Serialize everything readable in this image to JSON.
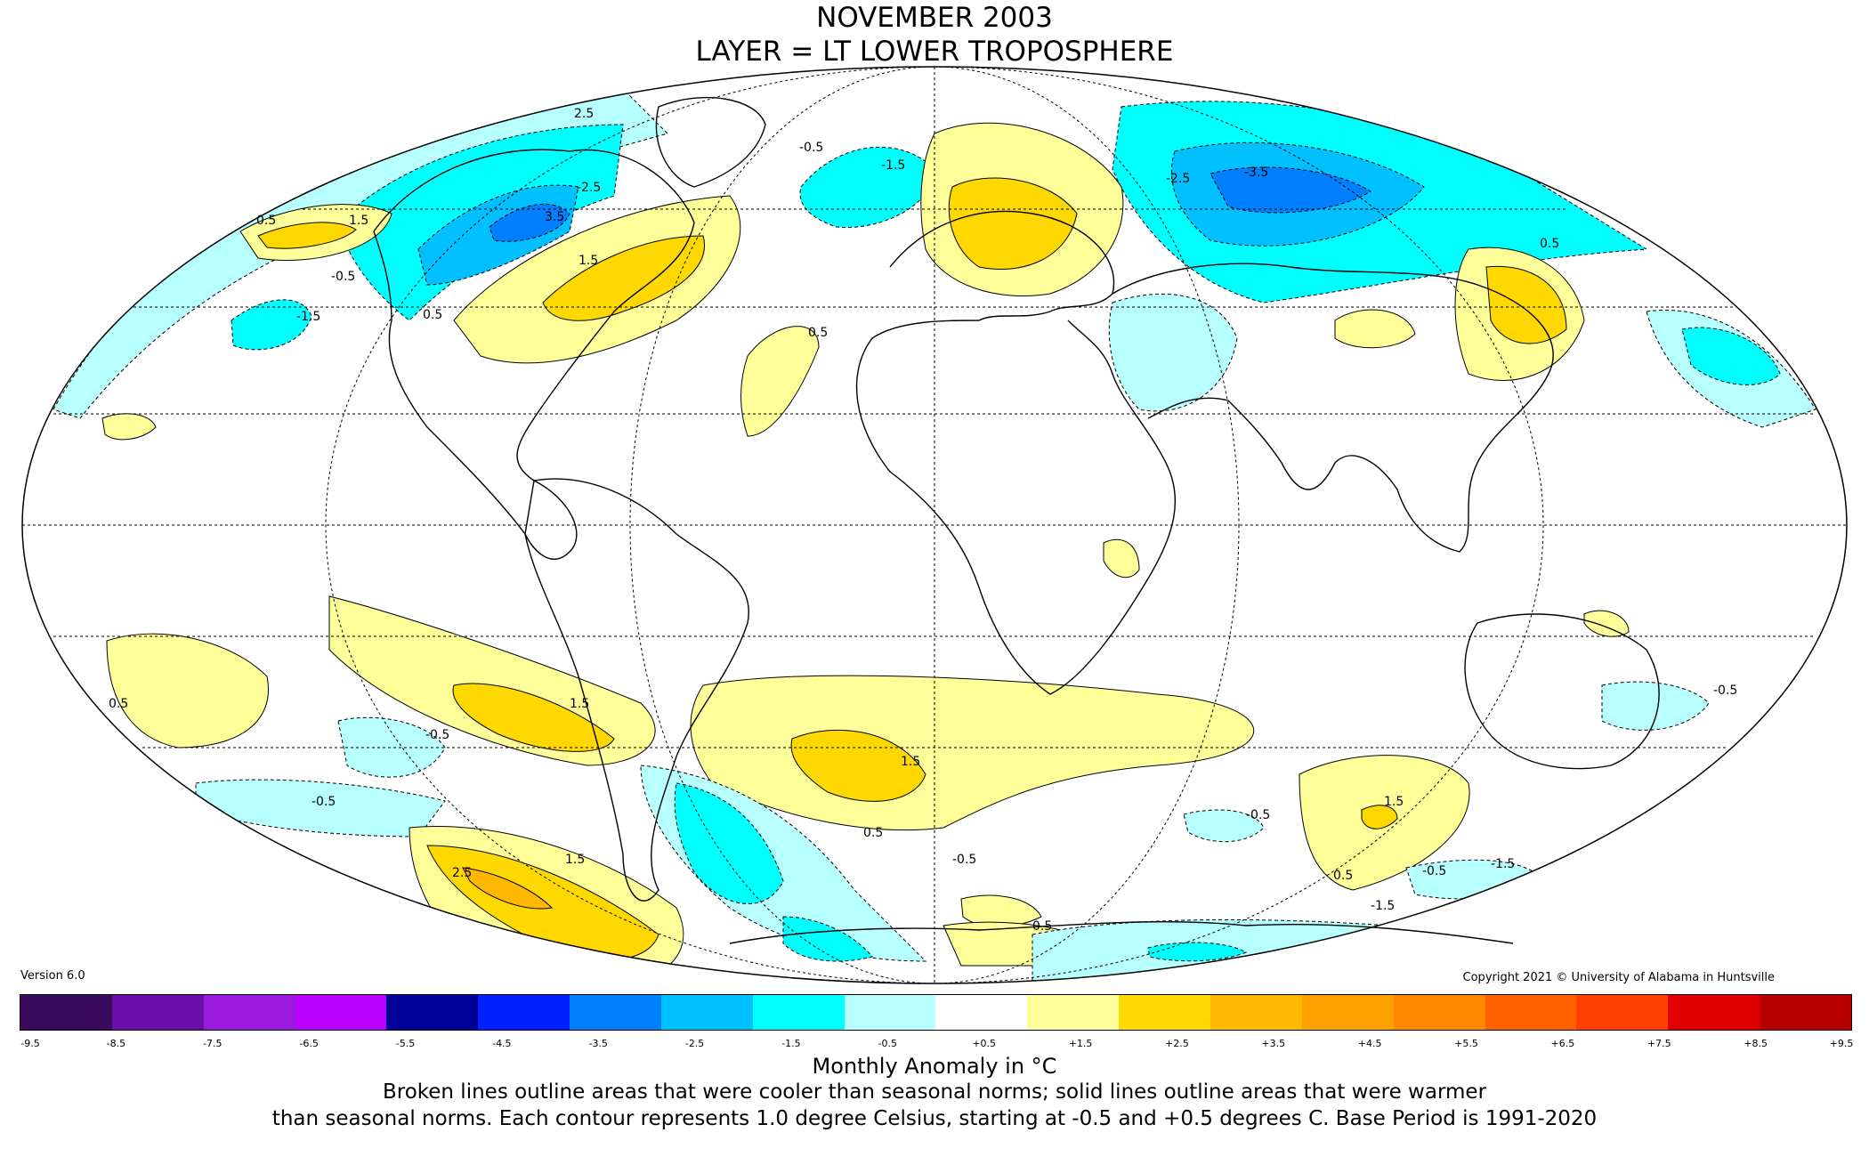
{
  "title_line1": "NOVEMBER 2003",
  "title_line2": "LAYER = LT LOWER TROPOSPHERE",
  "version": "Version 6.0",
  "copyright": "Copyright 2021 © University of Alabama in Huntsville",
  "legend": {
    "units_label": "Monthly Anomaly in °C",
    "ticks": [
      "-9.5",
      "-8.5",
      "-7.5",
      "-6.5",
      "-5.5",
      "-4.5",
      "-3.5",
      "-2.5",
      "-1.5",
      "-0.5",
      "+0.5",
      "+1.5",
      "+2.5",
      "+3.5",
      "+4.5",
      "+5.5",
      "+6.5",
      "+7.5",
      "+8.5",
      "+9.5"
    ],
    "colors": [
      "#3a0a5c",
      "#6a0fa8",
      "#9a1ae0",
      "#bb00ff",
      "#000099",
      "#0020ff",
      "#0080ff",
      "#00c0ff",
      "#00ffff",
      "#b8ffff",
      "#ffffff",
      "#ffff99",
      "#ffd800",
      "#ffb800",
      "#ffa000",
      "#ff8800",
      "#ff6000",
      "#ff4000",
      "#e00000",
      "#b80000"
    ]
  },
  "note_line1": "Broken lines outline areas that were cooler than seasonal norms; solid lines outline areas that were warmer",
  "note_line2": "than seasonal norms. Each contour represents 1.0 degree Celsius, starting at -0.5 and +0.5 degrees C. Base Period is 1991-2020",
  "contour_labels": [
    "2.5",
    "0.5",
    "1.5",
    "-0.5",
    "3.5",
    "1.5",
    "-1.5",
    "0.5",
    "-2.5",
    "-0.5",
    "0.5",
    "-1.5",
    "1.5",
    "0.5",
    "-0.5",
    "1.5",
    "0.5",
    "1.5",
    "-0.5",
    "2.5",
    "-0.5",
    "0.5",
    "-0.5",
    "1.5",
    "-1.5",
    "0.5",
    "-0.5",
    "-1.5",
    "-0.5",
    "0.5",
    "-3.5",
    "-2.5"
  ]
}
